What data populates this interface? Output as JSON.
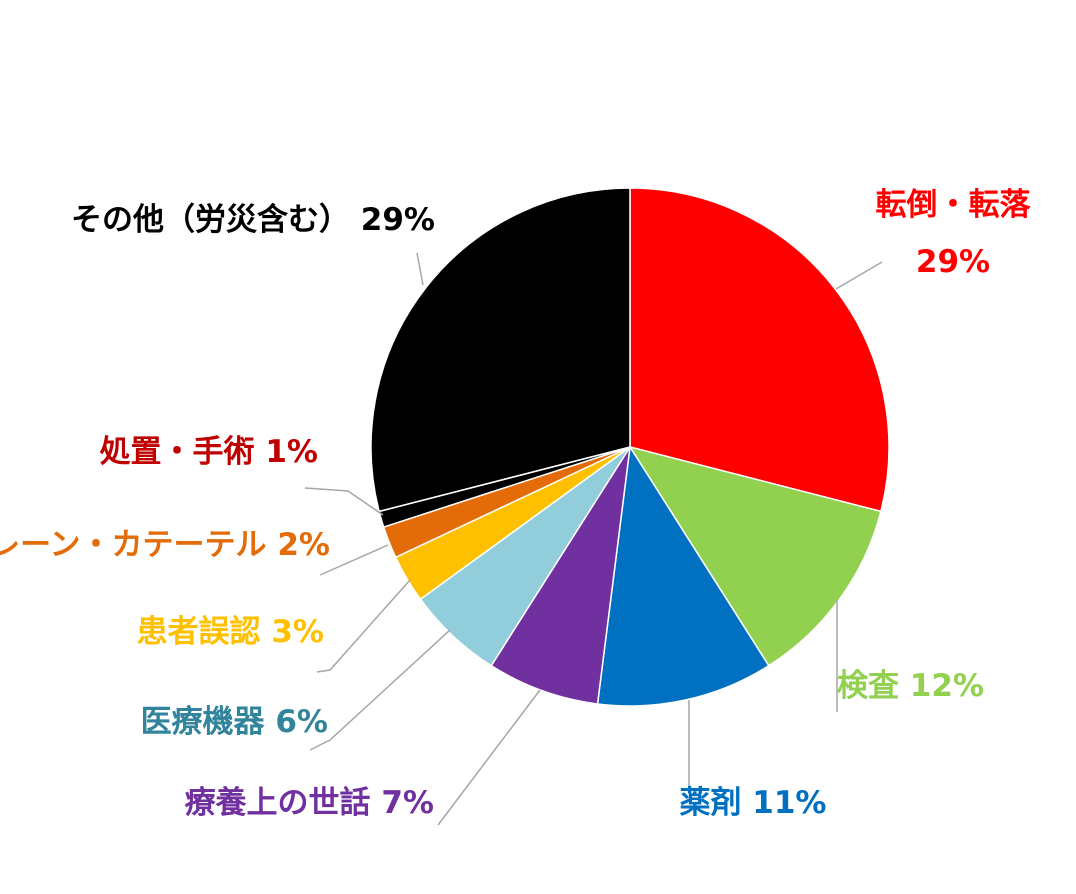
{
  "chart_data": {
    "type": "pie",
    "title": "",
    "slices": [
      {
        "label": "転倒・転落",
        "percent_label": "29%",
        "value": 29,
        "color": "#ff0000",
        "label_color": "#ff0000"
      },
      {
        "label": "検査",
        "percent_label": "12%",
        "value": 12,
        "color": "#92d050",
        "label_color": "#92d050"
      },
      {
        "label": "薬剤",
        "percent_label": "11%",
        "value": 11,
        "color": "#0070c0",
        "label_color": "#0070c0"
      },
      {
        "label": "療養上の世話",
        "percent_label": "7%",
        "value": 7,
        "color": "#7030a0",
        "label_color": "#7030a0"
      },
      {
        "label": "医療機器",
        "percent_label": "6%",
        "value": 6,
        "color": "#92cddc",
        "label_color": "#31849b"
      },
      {
        "label": "患者誤認",
        "percent_label": "3%",
        "value": 3,
        "color": "#ffc000",
        "label_color": "#ffc000"
      },
      {
        "label": "ドレーン・カテーテル",
        "percent_label": "2%",
        "value": 2,
        "color": "#e36c09",
        "label_color": "#e36c09"
      },
      {
        "label": "処置・手術",
        "percent_label": "1%",
        "value": 1,
        "color": "#000000",
        "label_color": "#c00000"
      },
      {
        "label": "その他（労災含む）",
        "percent_label": "29%",
        "value": 29,
        "color": "#000000",
        "label_color": "#000000"
      }
    ],
    "legend": "none",
    "start_angle": "12 o'clock",
    "direction": "clockwise"
  }
}
